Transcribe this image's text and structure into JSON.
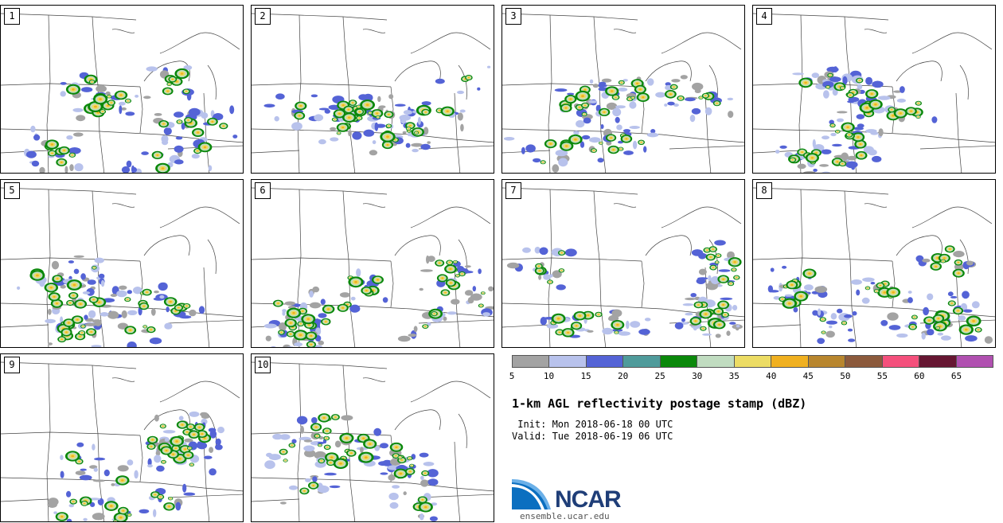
{
  "panels": [
    {
      "label": "1"
    },
    {
      "label": "2"
    },
    {
      "label": "3"
    },
    {
      "label": "4"
    },
    {
      "label": "5"
    },
    {
      "label": "6"
    },
    {
      "label": "7"
    },
    {
      "label": "8"
    },
    {
      "label": "9"
    },
    {
      "label": "10"
    }
  ],
  "colorbar": {
    "ticks": [
      "5",
      "10",
      "15",
      "20",
      "25",
      "30",
      "35",
      "40",
      "45",
      "50",
      "55",
      "60",
      "65"
    ],
    "colors": [
      "#a3a3a3",
      "#b8c2ec",
      "#5463d6",
      "#4f9b9b",
      "#0a880a",
      "#c0dcc0",
      "#ecdc64",
      "#f0b020",
      "#b8862e",
      "#8c5a3c",
      "#f4507c",
      "#661632",
      "#b050b0"
    ]
  },
  "title": "1-km AGL reflectivity postage stamp (dBZ)",
  "init": " Init: Mon 2018-06-18 00 UTC",
  "valid": "Valid: Tue 2018-06-19 06 UTC",
  "logo": {
    "text": "NCAR"
  },
  "site": "ensemble.ucar.edu"
}
